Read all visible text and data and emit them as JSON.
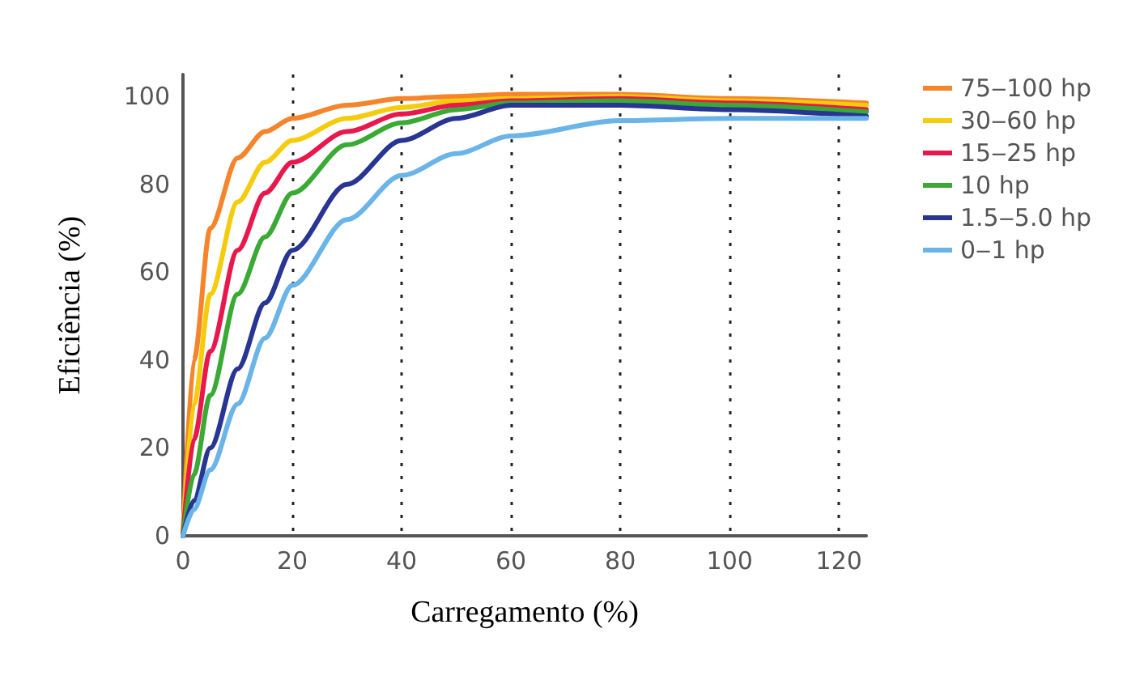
{
  "chart_data": {
    "type": "line",
    "xlabel": "Carregamento (%)",
    "ylabel": "Eficiência (%)",
    "xlim": [
      0,
      125
    ],
    "xticks": [
      0,
      20,
      40,
      60,
      80,
      100,
      120
    ],
    "ylim": [
      0,
      105
    ],
    "yticks": [
      0,
      20,
      40,
      60,
      80,
      100
    ],
    "grid": "x",
    "legend": "right",
    "marker": "none",
    "line_style": "solid",
    "x": [
      0,
      2,
      5,
      10,
      15,
      20,
      30,
      40,
      50,
      60,
      80,
      100,
      125
    ],
    "series": [
      {
        "name": "75‒100 hp",
        "color": "#f5842a",
        "values": [
          0,
          40,
          70,
          86,
          92,
          95,
          98,
          99.5,
          100,
          100.5,
          100.5,
          99.5,
          98.5
        ]
      },
      {
        "name": "30‒60 hp",
        "color": "#f4cc0c",
        "values": [
          0,
          30,
          55,
          76,
          85,
          90,
          95,
          97.5,
          99,
          99.5,
          100,
          99,
          98
        ]
      },
      {
        "name": "15‒25 hp",
        "color": "#e8174c",
        "values": [
          0,
          22,
          42,
          65,
          78,
          85,
          92,
          96,
          98,
          99,
          99.5,
          98.5,
          97
        ]
      },
      {
        "name": "10 hp",
        "color": "#3aaa35",
        "values": [
          0,
          14,
          32,
          55,
          68,
          78,
          89,
          94,
          97,
          98.5,
          99,
          98,
          96.5
        ]
      },
      {
        "name": "1.5‒5.0 hp",
        "color": "#283593",
        "values": [
          0,
          8,
          20,
          38,
          53,
          65,
          80,
          90,
          95,
          98,
          98,
          97,
          95.5
        ]
      },
      {
        "name": "0‒1 hp",
        "color": "#6ab4e8",
        "values": [
          0,
          6,
          15,
          30,
          45,
          57,
          72,
          82,
          87,
          91,
          94.5,
          95,
          95
        ]
      }
    ]
  }
}
